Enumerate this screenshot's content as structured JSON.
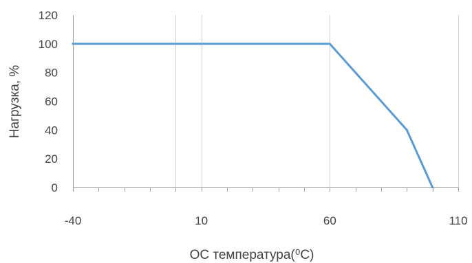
{
  "chart_data": {
    "type": "line",
    "title": "",
    "xlabel": "ОС температура(⁰С)",
    "ylabel": "Нагрузка, %",
    "xlim": [
      -40,
      110
    ],
    "ylim": [
      0,
      120
    ],
    "x_ticks": [
      "-40",
      "10",
      "60",
      "110"
    ],
    "y_ticks": [
      "0",
      "20",
      "40",
      "60",
      "80",
      "100",
      "120"
    ],
    "extra_vertical_gridlines": [
      0
    ],
    "grid": "vertical gridlines",
    "legend": "none",
    "series": [
      {
        "x": [
          -40,
          60,
          90,
          100
        ],
        "y": [
          100,
          100,
          40,
          0
        ],
        "color": "#5B9BD5"
      }
    ]
  }
}
